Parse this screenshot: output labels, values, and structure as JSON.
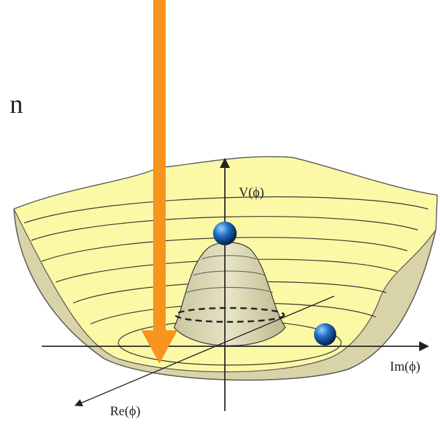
{
  "labels": {
    "partial_text": "n",
    "v_axis": "V(ϕ)",
    "im_axis": "Im(ϕ)",
    "re_axis": "Re(ϕ)"
  }
}
